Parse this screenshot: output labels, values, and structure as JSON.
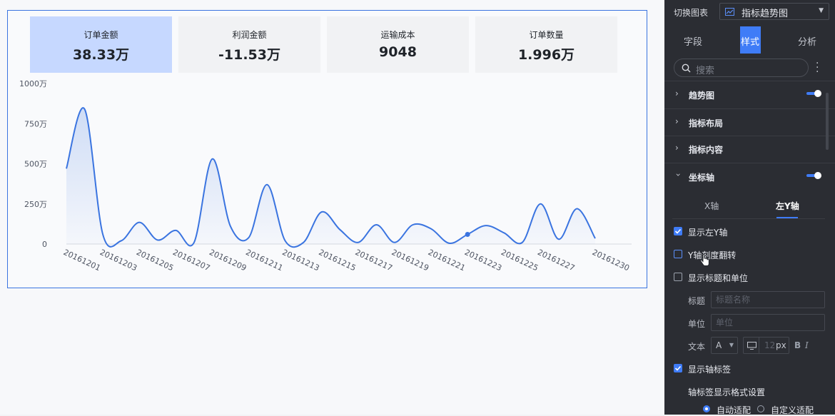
{
  "kpis": [
    {
      "label": "订单金额",
      "value": "38.33万"
    },
    {
      "label": "利润金额",
      "value": "-11.53万"
    },
    {
      "label": "运输成本",
      "value": "9048"
    },
    {
      "label": "订单数量",
      "value": "1.996万"
    }
  ],
  "chart_data": {
    "type": "area",
    "title": "",
    "xlabel": "",
    "ylabel": "",
    "y_ticks": [
      "0",
      "250万",
      "500万",
      "750万",
      "1000万"
    ],
    "ylim": [
      0,
      1000
    ],
    "y_unit": "万",
    "x_tick_labels": [
      "20161201",
      "20161203",
      "20161205",
      "20161207",
      "20161209",
      "20161211",
      "20161213",
      "20161215",
      "20161217",
      "20161219",
      "20161221",
      "20161223",
      "20161225",
      "20161227",
      "20161230"
    ],
    "x": [
      "20161201",
      "20161202",
      "20161203",
      "20161204",
      "20161205",
      "20161206",
      "20161207",
      "20161208",
      "20161209",
      "20161210",
      "20161211",
      "20161212",
      "20161213",
      "20161214",
      "20161215",
      "20161216",
      "20161217",
      "20161218",
      "20161219",
      "20161220",
      "20161221",
      "20161222",
      "20161223",
      "20161224",
      "20161225",
      "20161226",
      "20161227",
      "20161228",
      "20161229",
      "20161230"
    ],
    "series": [
      {
        "values": [
          470,
          840,
          60,
          20,
          135,
          25,
          85,
          10,
          530,
          110,
          40,
          370,
          20,
          10,
          200,
          90,
          10,
          120,
          10,
          120,
          95,
          5,
          60,
          115,
          70,
          10,
          250,
          30,
          220,
          35
        ]
      }
    ],
    "highlight_index": 22,
    "grid": false,
    "legend": "none",
    "line_color": "#3a74e0"
  },
  "panel": {
    "switch_label": "切换图表",
    "chart_type": "指标趋势图",
    "tabs": [
      "字段",
      "样式",
      "分析"
    ],
    "active_tab": 1,
    "search_placeholder": "搜索",
    "sections": [
      "趋势图",
      "指标布局",
      "指标内容",
      "坐标轴"
    ],
    "axis_tabs": [
      "X轴",
      "左Y轴"
    ],
    "show_left_y": "显示左Y轴",
    "y_flip": "Y轴刻度翻转",
    "show_title_unit": "显示标题和单位",
    "title_label": "标题",
    "title_placeholder": "标题名称",
    "unit_label": "单位",
    "unit_placeholder": "单位",
    "text_label": "文本",
    "font_letter": "A",
    "font_size": "12",
    "font_unit": "px",
    "bold": "B",
    "italic": "I",
    "show_axis_labels": "显示轴标签",
    "axis_label_format": "轴标签显示格式设置",
    "auto_fit": "自动适配",
    "custom_fit": "自定义适配"
  },
  "colors": {
    "accent": "#3f7cf7",
    "line": "#3a74e0",
    "kpi_active": "#c6d8ff",
    "panel_bg": "#2b2d33"
  }
}
